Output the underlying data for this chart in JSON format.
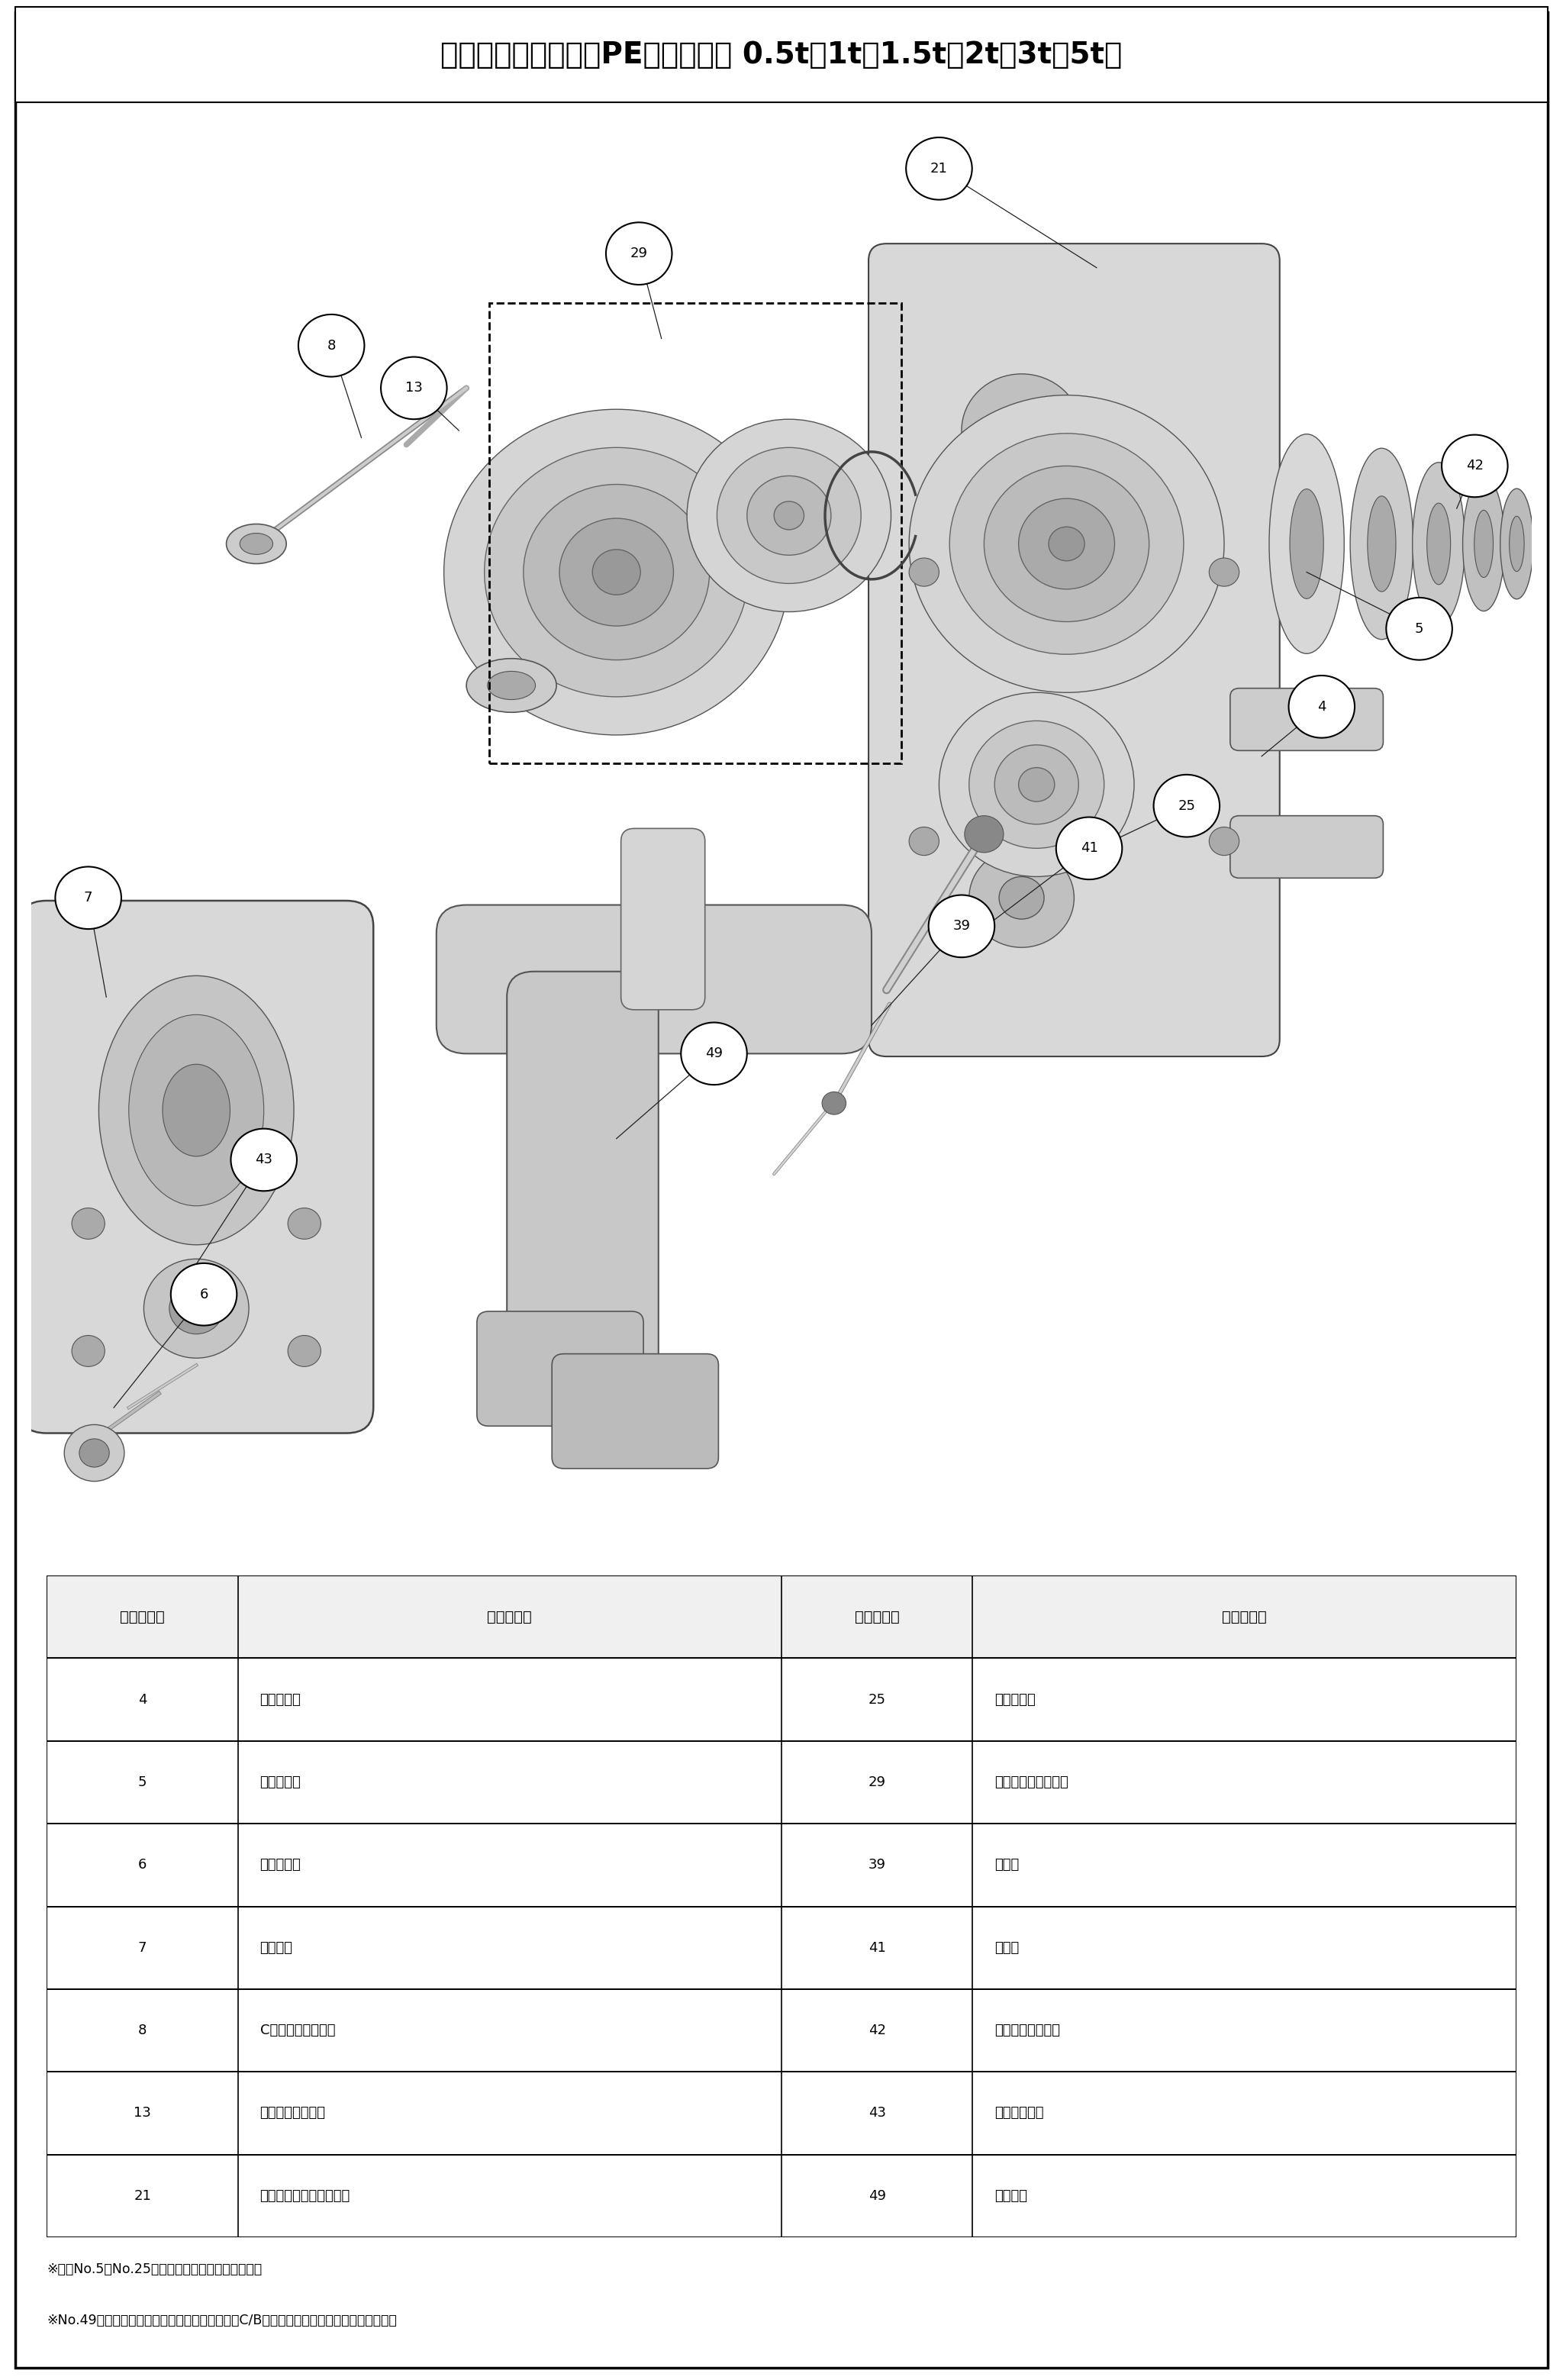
{
  "title": "分解図と部品名称：PE型（電気用 0.5t・1t・1.5t・2t・3t・5t）",
  "title_fontsize": 28,
  "background_color": "#ffffff",
  "table_headers": [
    "分解図符号",
    "部　品　名",
    "分解図符号",
    "部　品　名"
  ],
  "table_rows": [
    [
      "4",
      "ブラケット",
      "25",
      "六角ボルト"
    ],
    [
      "5",
      "六角ボルト",
      "29",
      "プレンローラセット"
    ],
    [
      "6",
      "六角ナット",
      "39",
      "吊り軸"
    ],
    [
      "7",
      "ばね座金",
      "41",
      "割ピン"
    ],
    [
      "8",
      "C形止め輪（軸用）",
      "42",
      "アジャストカラー"
    ],
    [
      "13",
      "ローラピン用座金",
      "43",
      "キープレート"
    ],
    [
      "21",
      "プレン側サイドプレート",
      "49",
      "結合金具"
    ]
  ],
  "footnotes": [
    "※部品No.5とNo.25のボルトの長さが異なります。",
    "※No.49・結合金具を直結でご使用の場合、電気C/Bの機種名・トン数をご確認ください。"
  ],
  "col_bounds": [
    0.0,
    0.13,
    0.5,
    0.63,
    1.0
  ]
}
